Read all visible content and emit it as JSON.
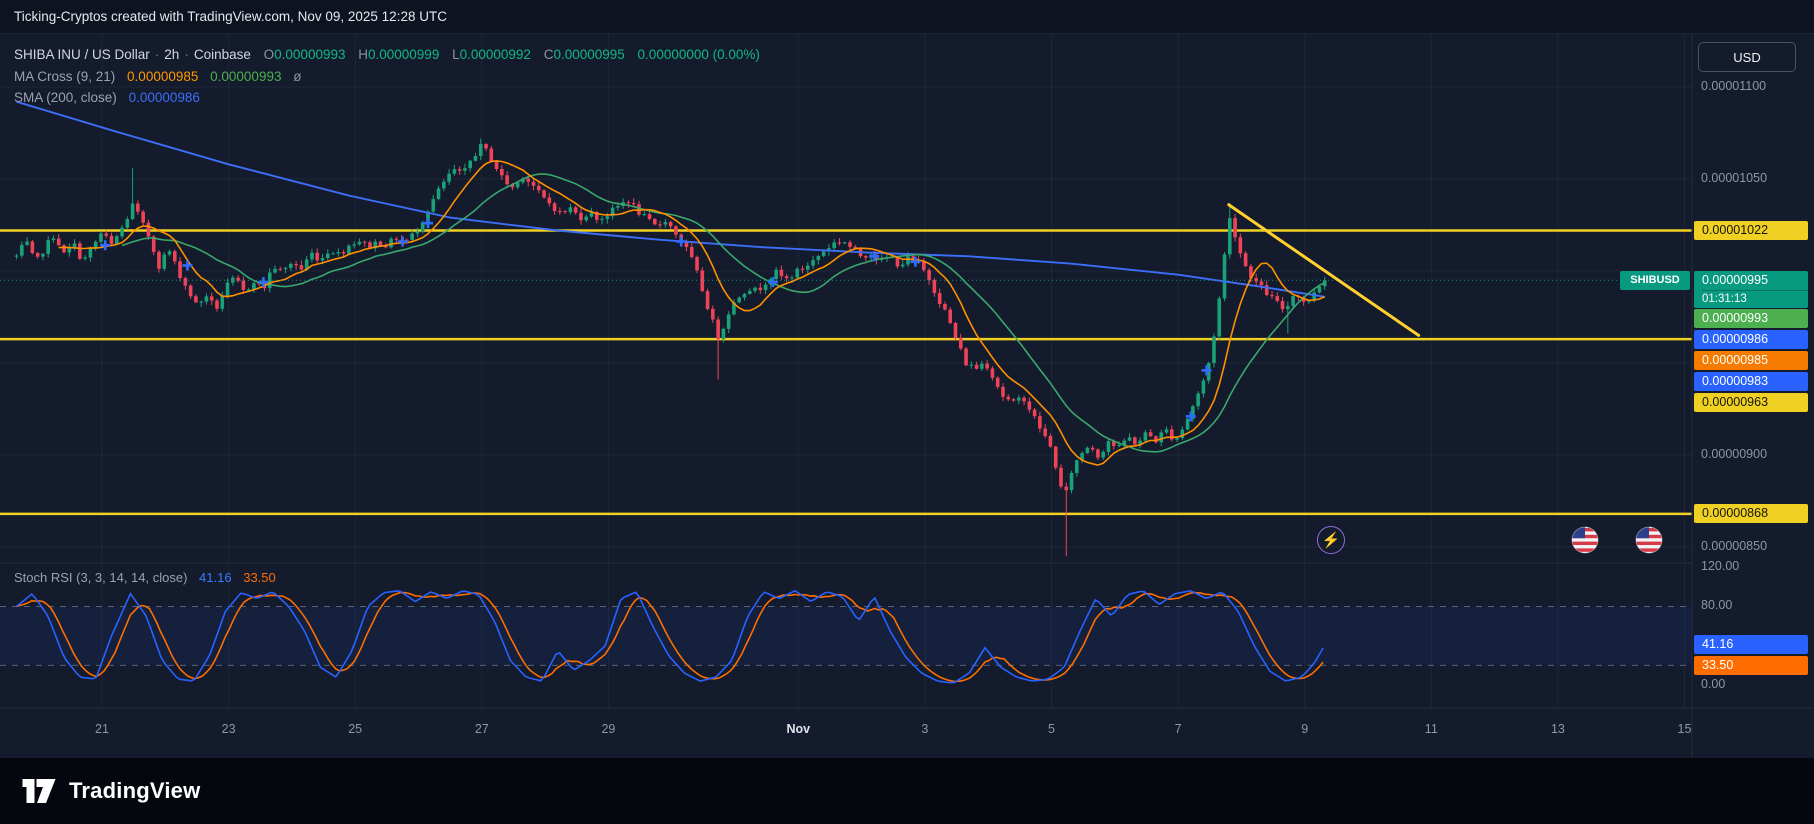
{
  "topbar": {
    "text": "Ticking-Cryptos created with TradingView.com, Nov 09, 2025 12:28 UTC"
  },
  "header": {
    "title": "SHIBA INU / US Dollar",
    "interval": "2h",
    "exchange": "Coinbase",
    "ohlc": {
      "o_label": "O",
      "o": "0.00000993",
      "h_label": "H",
      "h": "0.00000999",
      "l_label": "L",
      "l": "0.00000992",
      "c_label": "C",
      "c": "0.00000995",
      "change": "0.00000000 (0.00%)"
    },
    "indicators": {
      "ma_cross": {
        "name": "MA Cross (9, 21)",
        "v1": "0.00000985",
        "v2": "0.00000993",
        "v3": "ø"
      },
      "sma200": {
        "name": "SMA (200, close)",
        "v1": "0.00000986"
      }
    }
  },
  "currency_button": "USD",
  "symbol_tag": "SHIBUSD",
  "stoch": {
    "name": "Stoch RSI (3, 3, 14, 14, close)",
    "k": "41.16",
    "d": "33.50"
  },
  "footer": {
    "brand": "TradingView"
  },
  "price_axis": {
    "main_plain": [
      {
        "text": "0.00001100",
        "price": 1100
      },
      {
        "text": "0.00001050",
        "price": 1050
      },
      {
        "text": "0.00000900",
        "price": 900
      },
      {
        "text": "0.00000850",
        "price": 850
      }
    ],
    "main_chips": [
      {
        "text": "0.00001022",
        "bg": "#f0d022",
        "fg": "#14160a",
        "price": 1022
      },
      {
        "text": "0.00000995",
        "countdown": "01:31:13",
        "bg": "#089981",
        "fg": "#ffffff",
        "price": 995,
        "kind": "last-price"
      },
      {
        "text": "0.00000993",
        "bg": "#4caf50",
        "fg": "#ffffff",
        "price": 993
      },
      {
        "text": "0.00000986",
        "bg": "#2962ff",
        "fg": "#ffffff",
        "price": 986
      },
      {
        "text": "0.00000985",
        "bg": "#f57c00",
        "fg": "#ffffff",
        "price": 985
      },
      {
        "text": "0.00000983",
        "bg": "#2962ff",
        "fg": "#ffffff",
        "price": 983
      },
      {
        "text": "0.00000963",
        "bg": "#f0d022",
        "fg": "#14160a",
        "price": 963
      },
      {
        "text": "0.00000868",
        "bg": "#f0d022",
        "fg": "#14160a",
        "price": 868
      }
    ],
    "stoch_plain": [
      {
        "text": "120.00",
        "value": 120
      },
      {
        "text": "80.00",
        "value": 80
      },
      {
        "text": "0.00",
        "value": 0
      }
    ],
    "stoch_chips": [
      {
        "text": "41.16",
        "bg": "#2962ff",
        "fg": "#ffffff",
        "value": 41.16
      },
      {
        "text": "33.50",
        "bg": "#ff6d00",
        "fg": "#ffffff",
        "value": 33.5
      }
    ]
  },
  "chart_data": {
    "type": "candlestick",
    "title": "SHIBA INU / US Dollar, 2h, Coinbase",
    "price_unit": "1e-8 USD",
    "ylim": [
      850,
      1100
    ],
    "x_axis_note": "day index: 21..31 = Oct 21-31, 32..46 = Nov 1-15",
    "x_ticks": [
      {
        "label": "21",
        "d": 21
      },
      {
        "label": "23",
        "d": 23
      },
      {
        "label": "25",
        "d": 25
      },
      {
        "label": "27",
        "d": 27
      },
      {
        "label": "29",
        "d": 29
      },
      {
        "label": "Nov",
        "d": 32,
        "major": true
      },
      {
        "label": "3",
        "d": 34
      },
      {
        "label": "5",
        "d": 36
      },
      {
        "label": "7",
        "d": 38
      },
      {
        "label": "9",
        "d": 40
      },
      {
        "label": "11",
        "d": 42
      },
      {
        "label": "13",
        "d": 44
      },
      {
        "label": "15",
        "d": 46
      }
    ],
    "main_gridlines": [
      1100,
      1050,
      1000,
      950,
      900,
      850
    ],
    "close_path": [
      [
        19.65,
        1008
      ],
      [
        19.8,
        1016
      ],
      [
        19.95,
        1004
      ],
      [
        20.1,
        1013
      ],
      [
        20.25,
        1020
      ],
      [
        20.4,
        1009
      ],
      [
        20.55,
        1015
      ],
      [
        20.7,
        1005
      ],
      [
        20.85,
        1013
      ],
      [
        21.0,
        1021
      ],
      [
        21.15,
        1014
      ],
      [
        21.35,
        1025
      ],
      [
        21.5,
        1037
      ],
      [
        21.6,
        1028
      ],
      [
        21.75,
        1018
      ],
      [
        21.9,
        1003
      ],
      [
        22.05,
        1012
      ],
      [
        22.2,
        1000
      ],
      [
        22.35,
        990
      ],
      [
        22.5,
        981
      ],
      [
        22.65,
        987
      ],
      [
        22.8,
        979
      ],
      [
        22.95,
        991
      ],
      [
        23.1,
        996
      ],
      [
        23.25,
        988
      ],
      [
        23.4,
        995
      ],
      [
        23.55,
        990
      ],
      [
        23.7,
        1003
      ],
      [
        23.85,
        999
      ],
      [
        24.0,
        1005
      ],
      [
        24.15,
        1001
      ],
      [
        24.3,
        1010
      ],
      [
        24.45,
        1006
      ],
      [
        24.6,
        1012
      ],
      [
        24.75,
        1009
      ],
      [
        24.9,
        1014
      ],
      [
        25.05,
        1017
      ],
      [
        25.2,
        1013
      ],
      [
        25.35,
        1016
      ],
      [
        25.5,
        1014
      ],
      [
        25.65,
        1018
      ],
      [
        25.8,
        1016
      ],
      [
        25.95,
        1021
      ],
      [
        26.1,
        1030
      ],
      [
        26.25,
        1040
      ],
      [
        26.4,
        1048
      ],
      [
        26.55,
        1055
      ],
      [
        26.7,
        1052
      ],
      [
        26.85,
        1062
      ],
      [
        27.0,
        1068
      ],
      [
        27.1,
        1064
      ],
      [
        27.2,
        1058
      ],
      [
        27.35,
        1049
      ],
      [
        27.5,
        1045
      ],
      [
        27.65,
        1052
      ],
      [
        27.8,
        1047
      ],
      [
        27.95,
        1040
      ],
      [
        28.1,
        1036
      ],
      [
        28.25,
        1031
      ],
      [
        28.4,
        1034
      ],
      [
        28.55,
        1029
      ],
      [
        28.7,
        1032
      ],
      [
        28.85,
        1028
      ],
      [
        29.0,
        1031
      ],
      [
        29.15,
        1035
      ],
      [
        29.3,
        1039
      ],
      [
        29.45,
        1033
      ],
      [
        29.6,
        1028
      ],
      [
        29.75,
        1024
      ],
      [
        29.9,
        1028
      ],
      [
        30.05,
        1021
      ],
      [
        30.2,
        1014
      ],
      [
        30.35,
        1004
      ],
      [
        30.5,
        988
      ],
      [
        30.65,
        972
      ],
      [
        30.75,
        963
      ],
      [
        30.9,
        978
      ],
      [
        31.05,
        986
      ],
      [
        31.2,
        991
      ],
      [
        31.35,
        989
      ],
      [
        31.5,
        995
      ],
      [
        31.65,
        999
      ],
      [
        31.8,
        995
      ],
      [
        31.95,
        999
      ],
      [
        32.1,
        1002
      ],
      [
        32.25,
        1006
      ],
      [
        32.4,
        1011
      ],
      [
        32.55,
        1015
      ],
      [
        32.7,
        1017
      ],
      [
        32.85,
        1012
      ],
      [
        33.0,
        1008
      ],
      [
        33.15,
        1010
      ],
      [
        33.3,
        1005
      ],
      [
        33.45,
        1008
      ],
      [
        33.6,
        1003
      ],
      [
        33.75,
        1007
      ],
      [
        33.9,
        1004
      ],
      [
        34.05,
        997
      ],
      [
        34.2,
        986
      ],
      [
        34.35,
        976
      ],
      [
        34.5,
        962
      ],
      [
        34.65,
        950
      ],
      [
        34.8,
        947
      ],
      [
        34.95,
        951
      ],
      [
        35.1,
        941
      ],
      [
        35.25,
        931
      ],
      [
        35.4,
        928
      ],
      [
        35.55,
        932
      ],
      [
        35.7,
        922
      ],
      [
        35.85,
        913
      ],
      [
        36.0,
        903
      ],
      [
        36.1,
        890
      ],
      [
        36.2,
        874
      ],
      [
        36.3,
        890
      ],
      [
        36.45,
        900
      ],
      [
        36.6,
        906
      ],
      [
        36.75,
        899
      ],
      [
        36.9,
        908
      ],
      [
        37.05,
        903
      ],
      [
        37.2,
        910
      ],
      [
        37.35,
        906
      ],
      [
        37.5,
        912
      ],
      [
        37.65,
        908
      ],
      [
        37.8,
        914
      ],
      [
        37.95,
        908
      ],
      [
        38.1,
        916
      ],
      [
        38.25,
        928
      ],
      [
        38.4,
        940
      ],
      [
        38.5,
        952
      ],
      [
        38.6,
        972
      ],
      [
        38.7,
        998
      ],
      [
        38.8,
        1030
      ],
      [
        38.9,
        1020
      ],
      [
        39.0,
        1008
      ],
      [
        39.1,
        1000
      ],
      [
        39.25,
        993
      ],
      [
        39.4,
        988
      ],
      [
        39.55,
        983
      ],
      [
        39.7,
        978
      ],
      [
        39.8,
        988
      ],
      [
        39.95,
        985
      ],
      [
        40.05,
        982
      ],
      [
        40.15,
        989
      ],
      [
        40.25,
        993
      ],
      [
        40.32,
        995
      ]
    ],
    "special_wicks": [
      {
        "d": 21.5,
        "high": 1056
      },
      {
        "d": 27.0,
        "high": 1072
      },
      {
        "d": 30.75,
        "low": 941
      },
      {
        "d": 36.2,
        "low": 845
      },
      {
        "d": 38.8,
        "high": 1037
      },
      {
        "d": 39.7,
        "low": 966
      }
    ],
    "sma200_path": [
      [
        19.65,
        1092
      ],
      [
        21.2,
        1076
      ],
      [
        23.0,
        1058
      ],
      [
        24.9,
        1041
      ],
      [
        26.5,
        1029
      ],
      [
        28.2,
        1022
      ],
      [
        29.8,
        1017
      ],
      [
        31.4,
        1013
      ],
      [
        33.1,
        1010
      ],
      [
        34.7,
        1008
      ],
      [
        36.3,
        1004
      ],
      [
        38.0,
        998
      ],
      [
        39.4,
        991
      ],
      [
        40.32,
        986
      ]
    ],
    "ma_cross_markers": [
      [
        21.05,
        1014
      ],
      [
        22.35,
        1003
      ],
      [
        23.55,
        994
      ],
      [
        25.75,
        1016
      ],
      [
        26.15,
        1026
      ],
      [
        30.15,
        1016
      ],
      [
        31.6,
        994
      ],
      [
        33.2,
        1008
      ],
      [
        33.85,
        1005
      ],
      [
        38.2,
        921
      ],
      [
        38.45,
        946
      ]
    ],
    "horizontal_levels": [
      1022,
      963,
      868
    ],
    "trendline": {
      "from": [
        38.8,
        1036
      ],
      "to": [
        41.8,
        965
      ]
    },
    "last_price": 995,
    "last_price_display": "0.00000995",
    "stoch_rsi": {
      "upper": 80,
      "lower": 20,
      "k_now": 41.16,
      "d_now": 33.5,
      "k_path": [
        [
          19.65,
          80
        ],
        [
          19.9,
          93
        ],
        [
          20.15,
          70
        ],
        [
          20.4,
          28
        ],
        [
          20.65,
          8
        ],
        [
          20.9,
          6
        ],
        [
          21.15,
          50
        ],
        [
          21.45,
          93
        ],
        [
          21.7,
          70
        ],
        [
          21.95,
          25
        ],
        [
          22.2,
          6
        ],
        [
          22.45,
          4
        ],
        [
          22.7,
          30
        ],
        [
          22.95,
          75
        ],
        [
          23.2,
          94
        ],
        [
          23.45,
          88
        ],
        [
          23.7,
          95
        ],
        [
          23.95,
          80
        ],
        [
          24.2,
          55
        ],
        [
          24.45,
          18
        ],
        [
          24.7,
          8
        ],
        [
          24.95,
          35
        ],
        [
          25.2,
          80
        ],
        [
          25.45,
          94
        ],
        [
          25.7,
          96
        ],
        [
          25.95,
          85
        ],
        [
          26.2,
          95
        ],
        [
          26.45,
          88
        ],
        [
          26.7,
          96
        ],
        [
          26.95,
          92
        ],
        [
          27.2,
          65
        ],
        [
          27.45,
          25
        ],
        [
          27.7,
          8
        ],
        [
          27.95,
          4
        ],
        [
          28.2,
          35
        ],
        [
          28.45,
          15
        ],
        [
          28.7,
          25
        ],
        [
          28.95,
          40
        ],
        [
          29.2,
          88
        ],
        [
          29.45,
          95
        ],
        [
          29.7,
          60
        ],
        [
          29.95,
          30
        ],
        [
          30.2,
          12
        ],
        [
          30.45,
          4
        ],
        [
          30.7,
          8
        ],
        [
          30.95,
          25
        ],
        [
          31.2,
          70
        ],
        [
          31.45,
          95
        ],
        [
          31.7,
          88
        ],
        [
          31.95,
          96
        ],
        [
          32.2,
          85
        ],
        [
          32.45,
          95
        ],
        [
          32.7,
          90
        ],
        [
          32.95,
          65
        ],
        [
          33.2,
          90
        ],
        [
          33.45,
          55
        ],
        [
          33.7,
          28
        ],
        [
          33.95,
          12
        ],
        [
          34.2,
          4
        ],
        [
          34.45,
          2
        ],
        [
          34.7,
          12
        ],
        [
          34.95,
          38
        ],
        [
          35.2,
          18
        ],
        [
          35.45,
          8
        ],
        [
          35.7,
          4
        ],
        [
          35.95,
          6
        ],
        [
          36.2,
          18
        ],
        [
          36.45,
          55
        ],
        [
          36.7,
          88
        ],
        [
          36.95,
          70
        ],
        [
          37.2,
          92
        ],
        [
          37.45,
          96
        ],
        [
          37.7,
          82
        ],
        [
          37.95,
          93
        ],
        [
          38.2,
          96
        ],
        [
          38.45,
          88
        ],
        [
          38.7,
          95
        ],
        [
          38.95,
          75
        ],
        [
          39.2,
          40
        ],
        [
          39.45,
          14
        ],
        [
          39.7,
          4
        ],
        [
          39.95,
          8
        ],
        [
          40.15,
          22
        ],
        [
          40.32,
          41.16
        ]
      ]
    },
    "colors": {
      "up": "#1aa179",
      "down": "#ef4458",
      "ma9": "#ff9100",
      "ma21": "#3aa76d",
      "sma200": "#3d6ef7",
      "level": "#f0d022",
      "trend": "#ffd02e",
      "last": "#089981",
      "stoch_k": "#2962ff",
      "stoch_d": "#ff6d00",
      "marker": "#2e6bff"
    }
  }
}
